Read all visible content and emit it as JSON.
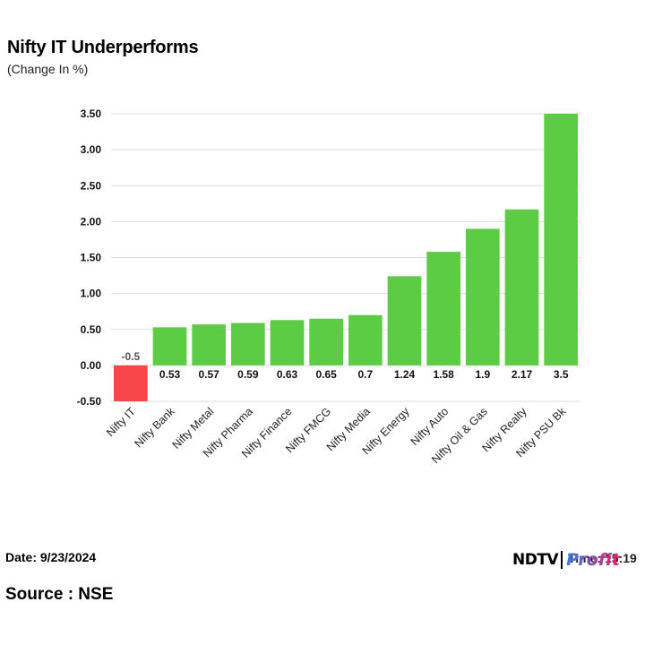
{
  "title": "Nifty IT Underperforms",
  "subtitle": "(Change In %)",
  "footer": {
    "date": "Date: 9/23/2024",
    "source": "Source : NSE",
    "time": "Time: 15:19",
    "logo_brand": "NDTV",
    "logo_product": "Profit"
  },
  "colors": {
    "positive": "#5dcc45",
    "negative": "#f5464a",
    "grid": "#dcdcdc"
  },
  "chart_data": {
    "type": "bar",
    "title": "Nifty IT Underperforms",
    "subtitle": "(Change In %)",
    "categories": [
      "Nifty IT",
      "Nifty Bank",
      "Nifty Metal",
      "Nifty Pharma",
      "Nifty Finance",
      "Nifty FMCG",
      "Nifty Media",
      "Nifty Energy",
      "Nifty Auto",
      "Nifty Oil & Gas",
      "Nifty Realty",
      "Nifty PSU Bk"
    ],
    "values": [
      -0.5,
      0.53,
      0.57,
      0.59,
      0.63,
      0.65,
      0.7,
      1.24,
      1.58,
      1.9,
      2.17,
      3.5
    ],
    "value_labels": [
      "-0.5",
      "0.53",
      "0.57",
      "0.59",
      "0.63",
      "0.65",
      "0.7",
      "1.24",
      "1.58",
      "1.9",
      "2.17",
      "3.5"
    ],
    "ylim": [
      -0.5,
      3.5
    ],
    "yticks": [
      "3.50",
      "3.00",
      "2.50",
      "2.00",
      "1.50",
      "1.00",
      "0.50",
      "0.00",
      "-0.50"
    ],
    "ytick_values": [
      3.5,
      3.0,
      2.5,
      2.0,
      1.5,
      1.0,
      0.5,
      0.0,
      -0.5
    ],
    "grid": true,
    "legend": "none"
  }
}
